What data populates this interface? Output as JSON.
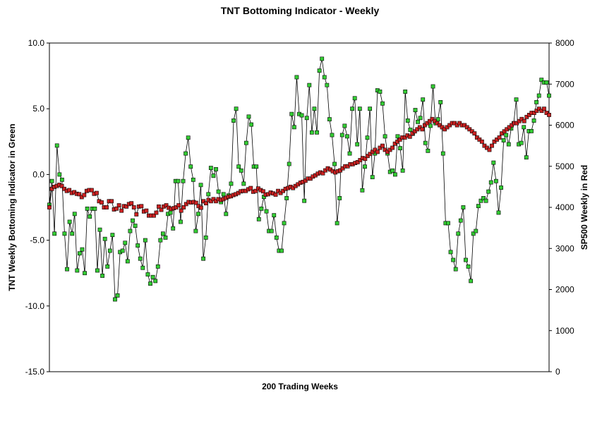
{
  "chart_data": {
    "type": "line",
    "title": "TNT Bottoming Indicator - Weekly",
    "xlabel": "200 Trading Weeks",
    "ylabel_left": "TNT Weekly Bottoming Indicator in Green",
    "ylabel_right": "SP500 Weekly in Red",
    "x_range": [
      1,
      200
    ],
    "ylim_left": [
      -15,
      10
    ],
    "ylim_right": [
      0,
      8000
    ],
    "yticks_left": [
      "10.0",
      "5.0",
      "0.0",
      "-5.0",
      "-10.0",
      "-15.0"
    ],
    "yticks_left_values": [
      10,
      5,
      0,
      -5,
      -10,
      -15
    ],
    "yticks_right": [
      "8000",
      "7000",
      "6000",
      "5000",
      "4000",
      "3000",
      "2000",
      "1000",
      "0"
    ],
    "yticks_right_values": [
      8000,
      7000,
      6000,
      5000,
      4000,
      3000,
      2000,
      1000,
      0
    ],
    "grid": false,
    "series": [
      {
        "name": "TNT Weekly Bottoming Indicator",
        "axis": "left",
        "color": "#33cc33",
        "values": [
          -2.3,
          -0.5,
          -4.5,
          2.2,
          0.0,
          -0.4,
          -4.5,
          -7.2,
          -3.6,
          -4.5,
          -3.0,
          -7.3,
          -6.0,
          -5.7,
          -7.5,
          -2.6,
          -3.2,
          -2.6,
          -2.6,
          -7.3,
          -4.2,
          -7.7,
          -4.9,
          -7.0,
          -5.8,
          -4.6,
          -9.5,
          -9.2,
          -5.9,
          -5.8,
          -5.2,
          -6.6,
          -4.3,
          -3.5,
          -3.9,
          -5.4,
          -6.4,
          -7.1,
          -5.0,
          -7.6,
          -8.3,
          -7.8,
          -8.1,
          -7.0,
          -5.0,
          -4.5,
          -4.8,
          -3.0,
          -2.9,
          -4.1,
          -0.5,
          -0.5,
          -3.6,
          -0.5,
          1.6,
          2.8,
          0.6,
          -0.4,
          -4.3,
          -3.0,
          -0.8,
          -6.4,
          -4.8,
          -1.5,
          0.5,
          -0.1,
          0.4,
          -1.3,
          -2.1,
          -1.5,
          -3.0,
          -1.6,
          -0.7,
          4.1,
          5.0,
          0.6,
          0.3,
          -0.7,
          2.4,
          4.4,
          3.8,
          0.6,
          0.6,
          -3.4,
          -2.6,
          -1.7,
          -2.8,
          -4.3,
          -4.3,
          -3.1,
          -4.8,
          -5.8,
          -5.8,
          -3.7,
          -1.8,
          0.8,
          4.6,
          3.6,
          7.4,
          4.6,
          4.5,
          -2.0,
          4.3,
          6.8,
          3.2,
          5.0,
          3.2,
          7.9,
          8.8,
          7.4,
          6.8,
          4.2,
          3.0,
          0.8,
          -3.7,
          -1.8,
          3.0,
          3.7,
          2.9,
          1.6,
          5.0,
          5.8,
          2.3,
          5.0,
          -1.2,
          0.6,
          2.8,
          5.0,
          -0.2,
          1.6,
          6.4,
          6.3,
          5.4,
          2.9,
          1.6,
          0.2,
          0.3,
          0.0,
          2.9,
          2.0,
          0.3,
          6.3,
          4.1,
          3.4,
          3.1,
          4.9,
          4.0,
          4.3,
          5.7,
          2.4,
          1.8,
          3.7,
          6.7,
          3.9,
          4.2,
          5.5,
          1.6,
          -3.7,
          -3.7,
          -5.9,
          -6.5,
          -7.2,
          -4.5,
          -3.5,
          -2.5,
          -6.5,
          -7.0,
          -8.1,
          -4.5,
          -4.3,
          -2.4,
          -2.0,
          -1.8,
          -2.0,
          -1.3,
          -0.6,
          0.9,
          -0.5,
          -2.9,
          -1.0,
          2.6,
          3.0,
          2.3,
          3.5,
          3.9,
          5.7,
          2.3,
          2.4,
          3.6,
          1.3,
          3.3,
          3.3,
          4.1,
          5.5,
          6.0,
          7.2,
          7.0,
          7.0,
          6.0
        ]
      },
      {
        "name": "SP500 Weekly",
        "axis": "right",
        "color": "#cc2222",
        "values": [
          4000,
          4450,
          4500,
          4520,
          4550,
          4520,
          4450,
          4400,
          4420,
          4350,
          4370,
          4330,
          4320,
          4250,
          4300,
          4400,
          4420,
          4420,
          4330,
          4350,
          4150,
          4120,
          4000,
          4000,
          4150,
          4150,
          3950,
          3970,
          4050,
          3920,
          4030,
          4020,
          4080,
          4100,
          4000,
          3830,
          4020,
          4030,
          3900,
          3920,
          3800,
          3800,
          3800,
          3870,
          4020,
          3940,
          4020,
          4050,
          3990,
          3960,
          3980,
          4000,
          4050,
          3920,
          4000,
          4080,
          4130,
          4120,
          4130,
          4110,
          4030,
          3990,
          4150,
          4100,
          4180,
          4150,
          4200,
          4150,
          4200,
          4180,
          4200,
          4230,
          4260,
          4270,
          4300,
          4320,
          4350,
          4390,
          4400,
          4400,
          4440,
          4470,
          4380,
          4400,
          4460,
          4420,
          4390,
          4310,
          4320,
          4360,
          4340,
          4310,
          4400,
          4350,
          4400,
          4450,
          4470,
          4500,
          4470,
          4520,
          4560,
          4600,
          4620,
          4650,
          4700,
          4700,
          4750,
          4780,
          4820,
          4850,
          4830,
          4900,
          4950,
          4920,
          4880,
          4850,
          4880,
          4900,
          4950,
          5000,
          5000,
          5050,
          5050,
          5080,
          5100,
          5150,
          5200,
          5180,
          5250,
          5300,
          5350,
          5400,
          5350,
          5450,
          5500,
          5400,
          5350,
          5400,
          5450,
          5550,
          5600,
          5650,
          5700,
          5700,
          5750,
          5720,
          5800,
          5850,
          5900,
          5950,
          5900,
          6000,
          6050,
          6100,
          6150,
          6100,
          6050,
          6000,
          5950,
          5900,
          5950,
          6000,
          6050,
          6050,
          6000,
          6050,
          6000,
          6000,
          5950,
          5900,
          5850,
          5800,
          5700,
          5650,
          5600,
          5500,
          5450,
          5400,
          5500,
          5600,
          5650,
          5700,
          5800,
          5850,
          5900,
          5950,
          6000,
          6050,
          6050,
          6100,
          6150,
          6100,
          6200,
          6250,
          6300,
          6300,
          6350,
          6400,
          6350,
          6400,
          6300,
          6250
        ]
      }
    ]
  }
}
